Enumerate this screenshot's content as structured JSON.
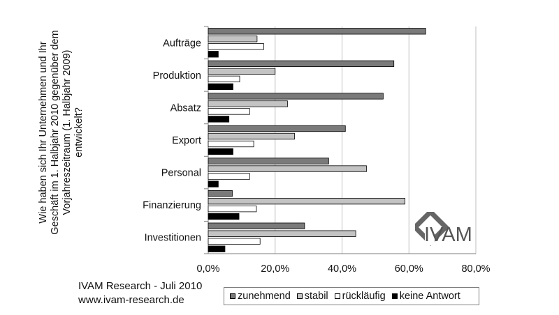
{
  "chart_data": {
    "type": "bar",
    "orientation": "horizontal",
    "ylabel": "Wie haben sich Ihr Unternehmen und Ihr Geschäft im 1. Halbjahr 2010 gegenüber dem Vorjahreszeitraum (1. Halbjahr 2009) entwickelt?",
    "categories": [
      "Aufträge",
      "Produktion",
      "Absatz",
      "Export",
      "Personal",
      "Finanzierung",
      "Investitionen"
    ],
    "series": [
      {
        "name": "zunehmend",
        "color": "#7a7a7a",
        "values": [
          65.0,
          55.5,
          52.3,
          41.0,
          36.0,
          7.2,
          28.8
        ]
      },
      {
        "name": "stabil",
        "color": "#c3c3c3",
        "values": [
          14.6,
          20.0,
          23.7,
          25.8,
          47.3,
          58.8,
          44.1
        ]
      },
      {
        "name": "rückläufig",
        "color": "#ffffff",
        "values": [
          16.6,
          9.4,
          12.4,
          13.6,
          12.4,
          14.4,
          15.5
        ]
      },
      {
        "name": "keine Antwort",
        "color": "#000000",
        "values": [
          3.0,
          7.4,
          6.2,
          7.4,
          3.0,
          9.2,
          5.0
        ]
      }
    ],
    "xlim": [
      0,
      80
    ],
    "xticks": [
      "0,0%",
      "20,0%",
      "40,0%",
      "60,0%",
      "80,0%"
    ],
    "grid": true,
    "legend_position": "bottom"
  },
  "source": {
    "line1": "IVAM Research - Juli 2010",
    "line2": "www.ivam-research.de"
  },
  "logo": {
    "text_main": "IVAM",
    "text_dot": "."
  }
}
